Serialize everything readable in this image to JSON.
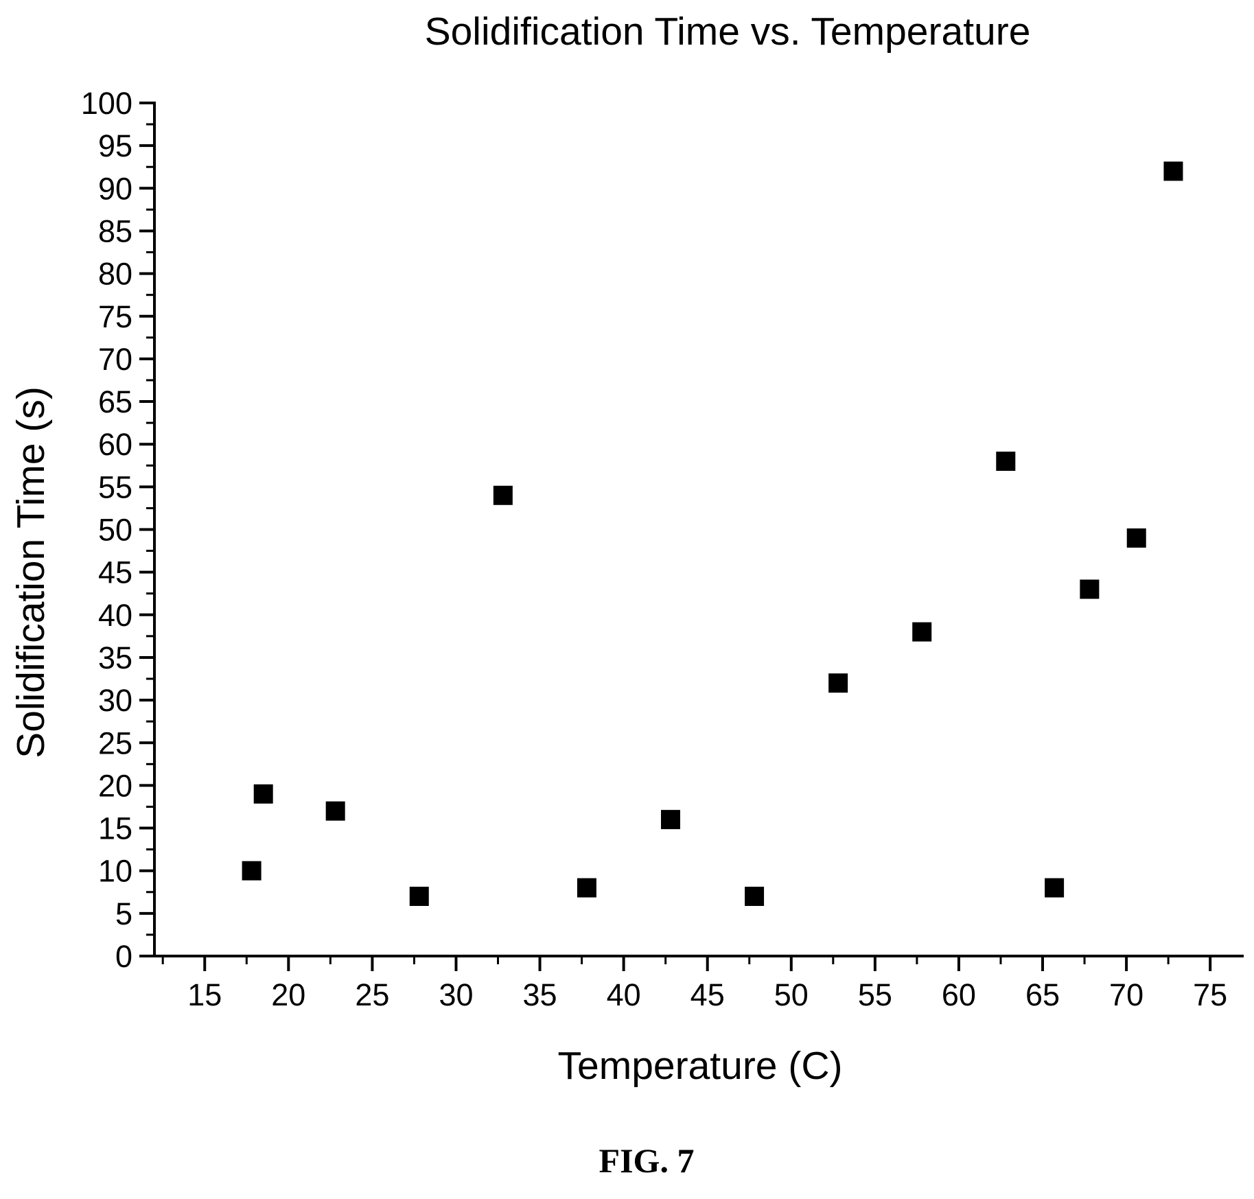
{
  "chart_data": {
    "type": "scatter",
    "title": "Solidification Time vs. Temperature",
    "xlabel": "Temperature (C)",
    "ylabel": "Solidification Time (s)",
    "xlim": [
      12,
      77
    ],
    "ylim": [
      0,
      100
    ],
    "x_ticks": [
      15,
      20,
      25,
      30,
      35,
      40,
      45,
      50,
      55,
      60,
      65,
      70,
      75
    ],
    "y_ticks": [
      0,
      5,
      10,
      15,
      20,
      25,
      30,
      35,
      40,
      45,
      50,
      55,
      60,
      65,
      70,
      75,
      80,
      85,
      90,
      95,
      100
    ],
    "grid": false,
    "legend": false,
    "marker": "square",
    "marker_color": "#000000",
    "series": [
      {
        "points": [
          {
            "x": 17.8,
            "y": 10
          },
          {
            "x": 18.5,
            "y": 19
          },
          {
            "x": 22.8,
            "y": 17
          },
          {
            "x": 27.8,
            "y": 7
          },
          {
            "x": 32.8,
            "y": 54
          },
          {
            "x": 37.8,
            "y": 8
          },
          {
            "x": 42.8,
            "y": 16
          },
          {
            "x": 47.8,
            "y": 7
          },
          {
            "x": 52.8,
            "y": 32
          },
          {
            "x": 57.8,
            "y": 38
          },
          {
            "x": 62.8,
            "y": 58
          },
          {
            "x": 65.7,
            "y": 8
          },
          {
            "x": 67.8,
            "y": 43
          },
          {
            "x": 70.6,
            "y": 49
          },
          {
            "x": 72.8,
            "y": 92
          }
        ]
      }
    ]
  },
  "caption": "FIG. 7"
}
